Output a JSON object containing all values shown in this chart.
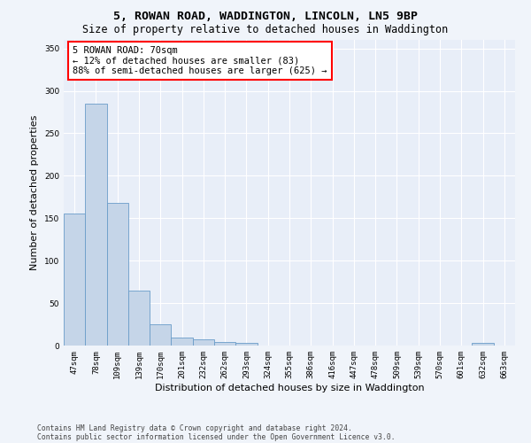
{
  "title": "5, ROWAN ROAD, WADDINGTON, LINCOLN, LN5 9BP",
  "subtitle": "Size of property relative to detached houses in Waddington",
  "xlabel": "Distribution of detached houses by size in Waddington",
  "ylabel": "Number of detached properties",
  "bar_color": "#c5d5e8",
  "bar_edge_color": "#6a9cc9",
  "categories": [
    "47sqm",
    "78sqm",
    "109sqm",
    "139sqm",
    "170sqm",
    "201sqm",
    "232sqm",
    "262sqm",
    "293sqm",
    "324sqm",
    "355sqm",
    "386sqm",
    "416sqm",
    "447sqm",
    "478sqm",
    "509sqm",
    "539sqm",
    "570sqm",
    "601sqm",
    "632sqm",
    "663sqm"
  ],
  "values": [
    155,
    285,
    168,
    65,
    25,
    9,
    7,
    4,
    3,
    0,
    0,
    0,
    0,
    0,
    0,
    0,
    0,
    0,
    0,
    3,
    0
  ],
  "ylim": [
    0,
    360
  ],
  "yticks": [
    0,
    50,
    100,
    150,
    200,
    250,
    300,
    350
  ],
  "annotation_box_text": "5 ROWAN ROAD: 70sqm\n← 12% of detached houses are smaller (83)\n88% of semi-detached houses are larger (625) →",
  "property_bar_index": 1,
  "footer_line1": "Contains HM Land Registry data © Crown copyright and database right 2024.",
  "footer_line2": "Contains public sector information licensed under the Open Government Licence v3.0.",
  "background_color": "#f0f4fa",
  "axes_background": "#e8eef8",
  "grid_color": "#ffffff",
  "title_fontsize": 9.5,
  "subtitle_fontsize": 8.5,
  "tick_fontsize": 6.5,
  "ylabel_fontsize": 8,
  "xlabel_fontsize": 8,
  "annotation_fontsize": 7.5,
  "footer_fontsize": 5.8
}
